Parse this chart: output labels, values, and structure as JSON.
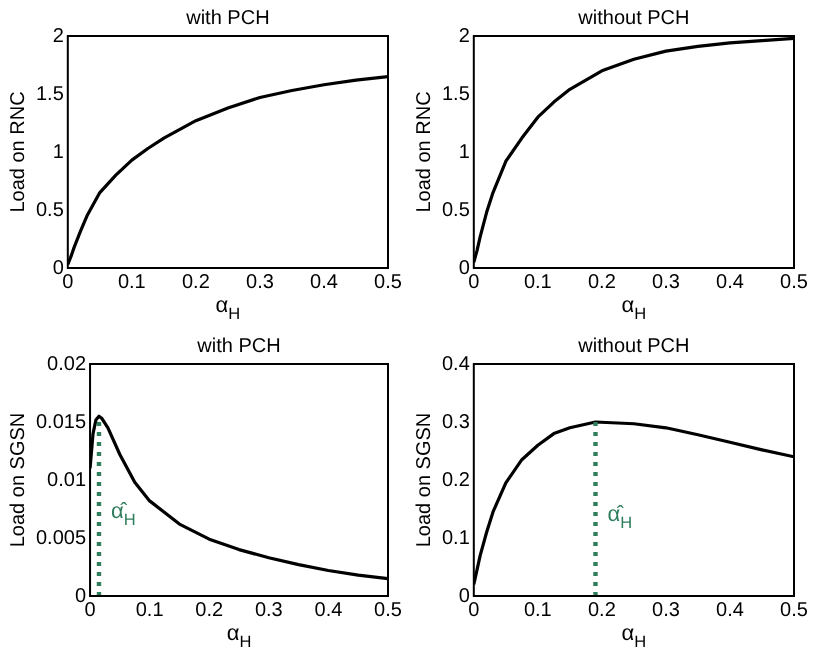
{
  "chart_data": [
    {
      "type": "line",
      "title": "with PCH",
      "xlabel": "α$_{H}$",
      "ylabel": "Load on RNC",
      "xlim": [
        0,
        0.5
      ],
      "xticks": [
        0,
        0.1,
        0.2,
        0.3,
        0.4,
        0.5
      ],
      "ylim": [
        0,
        2
      ],
      "yticks": [
        0,
        0.5,
        1,
        1.5,
        2
      ],
      "marker": "none",
      "x": [
        0,
        0.005,
        0.01,
        0.02,
        0.03,
        0.05,
        0.075,
        0.1,
        0.125,
        0.15,
        0.2,
        0.25,
        0.3,
        0.35,
        0.4,
        0.45,
        0.5
      ],
      "series": [
        {
          "color": "#000000",
          "values": [
            0.03,
            0.1,
            0.18,
            0.32,
            0.45,
            0.65,
            0.8,
            0.93,
            1.03,
            1.12,
            1.27,
            1.38,
            1.47,
            1.53,
            1.58,
            1.62,
            1.65
          ]
        }
      ]
    },
    {
      "type": "line",
      "title": "without PCH",
      "xlabel": "α$_{H}$",
      "ylabel": "Load on RNC",
      "xlim": [
        0,
        0.5
      ],
      "xticks": [
        0,
        0.1,
        0.2,
        0.3,
        0.4,
        0.5
      ],
      "ylim": [
        0,
        2
      ],
      "yticks": [
        0,
        0.5,
        1,
        1.5,
        2
      ],
      "marker": "none",
      "x": [
        0,
        0.005,
        0.01,
        0.02,
        0.03,
        0.05,
        0.075,
        0.1,
        0.125,
        0.15,
        0.2,
        0.25,
        0.3,
        0.35,
        0.4,
        0.45,
        0.5
      ],
      "series": [
        {
          "color": "#000000",
          "values": [
            0.05,
            0.15,
            0.27,
            0.48,
            0.65,
            0.92,
            1.12,
            1.3,
            1.43,
            1.54,
            1.7,
            1.8,
            1.87,
            1.91,
            1.94,
            1.96,
            1.98
          ]
        }
      ]
    },
    {
      "type": "line",
      "title": "with PCH",
      "xlabel": "α$_{H}$",
      "ylabel": "Load on SGSN",
      "xlim": [
        0,
        0.5
      ],
      "xticks": [
        0,
        0.1,
        0.2,
        0.3,
        0.4,
        0.5
      ],
      "ylim": [
        0,
        0.02
      ],
      "yticks": [
        0,
        0.005,
        0.01,
        0.015,
        0.02
      ],
      "marker": "none",
      "x": [
        0,
        0.005,
        0.01,
        0.015,
        0.02,
        0.03,
        0.05,
        0.075,
        0.1,
        0.15,
        0.2,
        0.25,
        0.3,
        0.35,
        0.4,
        0.45,
        0.5
      ],
      "series": [
        {
          "color": "#000000",
          "values": [
            0.011,
            0.014,
            0.0152,
            0.0155,
            0.0153,
            0.0145,
            0.0122,
            0.0098,
            0.0082,
            0.0062,
            0.0049,
            0.004,
            0.0033,
            0.0027,
            0.0022,
            0.0018,
            0.0015
          ]
        }
      ],
      "ref_lines": [
        {
          "axis": "x",
          "value": 0.015,
          "label": "α̂$_{H}$",
          "color": "#2e7d5b",
          "line_style": "dotted"
        }
      ]
    },
    {
      "type": "line",
      "title": "without PCH",
      "xlabel": "α$_{H}$",
      "ylabel": "Load on SGSN",
      "xlim": [
        0,
        0.5
      ],
      "xticks": [
        0,
        0.1,
        0.2,
        0.3,
        0.4,
        0.5
      ],
      "ylim": [
        0,
        0.4
      ],
      "yticks": [
        0,
        0.1,
        0.2,
        0.3,
        0.4
      ],
      "marker": "none",
      "x": [
        0,
        0.01,
        0.02,
        0.03,
        0.05,
        0.075,
        0.1,
        0.125,
        0.15,
        0.19,
        0.25,
        0.3,
        0.35,
        0.4,
        0.45,
        0.5
      ],
      "series": [
        {
          "color": "#000000",
          "values": [
            0.02,
            0.07,
            0.11,
            0.145,
            0.195,
            0.235,
            0.26,
            0.28,
            0.29,
            0.3,
            0.297,
            0.29,
            0.278,
            0.265,
            0.252,
            0.24
          ]
        }
      ],
      "ref_lines": [
        {
          "axis": "x",
          "value": 0.19,
          "label": "α̂$_{H}$",
          "color": "#2e7d5b",
          "line_style": "dotted"
        }
      ]
    }
  ]
}
